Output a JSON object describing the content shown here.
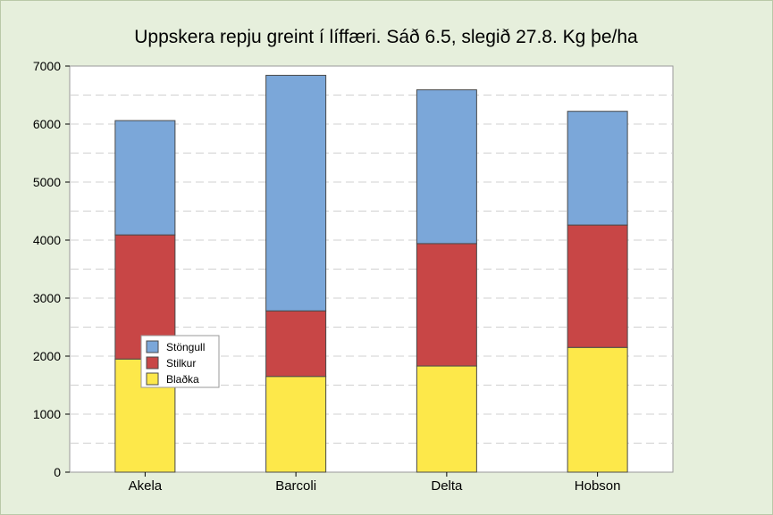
{
  "chart_data": {
    "type": "bar",
    "stacked": true,
    "title": "Uppskera repju greint í líffæri. Sáð 6.5, slegið 27.8. Kg þe/ha",
    "xlabel": "",
    "ylabel": "",
    "categories": [
      "Akela",
      "Barcoli",
      "Delta",
      "Hobson"
    ],
    "ylim": [
      0,
      7000
    ],
    "yticks": [
      0,
      1000,
      2000,
      3000,
      4000,
      5000,
      6000,
      7000
    ],
    "grid": true,
    "legend_position": "left-middle",
    "series": [
      {
        "name": "Blaðka",
        "color": "#fde84a",
        "values": [
          1950,
          1650,
          1830,
          2150
        ]
      },
      {
        "name": "Stilkur",
        "color": "#c84646",
        "values": [
          2140,
          1130,
          2110,
          2110
        ]
      },
      {
        "name": "Stöngull",
        "color": "#7ba7d9",
        "values": [
          1970,
          4060,
          2650,
          1960
        ]
      }
    ]
  }
}
